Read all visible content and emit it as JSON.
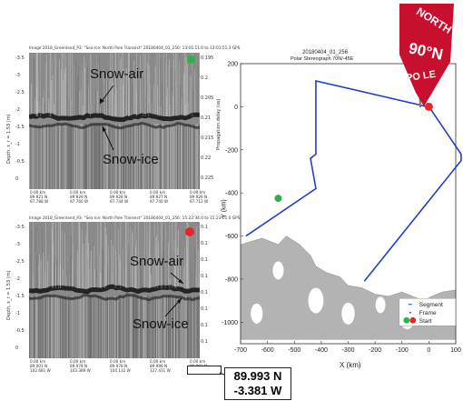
{
  "top_panel": {
    "title": "Image 2018_Greenland_P3: \"Sea Ice: North Pole Transect\" 20180404_01_256: 13:01:11.0 to 13:01:51.3 GPS",
    "y_left_label": "Depth, ε_r = 1.53 (m)",
    "y_right_label": "Propagation delay (us)",
    "left_ticks": [
      "-3.5",
      "-3",
      "-2.5",
      "-2",
      "-1.5",
      "-1",
      "-0.5",
      "0"
    ],
    "right_ticks": [
      "0.195",
      "0.2",
      "0.205",
      "0.21",
      "0.215",
      "0.22",
      "0.225"
    ],
    "bottom_ticks": [
      [
        "0.00 km",
        "89.921 N",
        "97.788 W"
      ],
      [
        "0.00 km",
        "89.929 N",
        "97.760 W"
      ],
      [
        "0.00 km",
        "89.928 N",
        "97.744 W"
      ],
      [
        "0.00 km",
        "89.927 N",
        "97.740 W"
      ],
      [
        "0.00 km",
        "89.926 N",
        "97.712 W"
      ]
    ],
    "annotation_air": "Snow-air",
    "annotation_ice": "Snow-ice",
    "dot_color": "#2bb34a"
  },
  "bottom_panel": {
    "title": "Image 2018_Greenland_P3: \"Sea Ice: North Pole Transect\" 20180404_01_256: 15:22:34.0 to 15:23:01.0 GPS",
    "y_left_label": "Depth, ε_r = 1.53 (m)",
    "left_ticks": [
      "-3.5",
      "-3",
      "-2.5",
      "-2",
      "-1.5",
      "-1",
      "-0.5",
      "0"
    ],
    "right_ticks": [
      "0.1",
      "0.1",
      "0.1",
      "0.1",
      "0.1",
      "0.1",
      "0.1",
      "0.1"
    ],
    "bottom_ticks": [
      [
        "0.00 km",
        "89.001 N",
        "102.681 W"
      ],
      [
        "0.00 km",
        "89.978 N",
        "103.389 W"
      ],
      [
        "0.00 km",
        "89.978 N",
        "104.132 W"
      ],
      [
        "0.00 km",
        "89.996 N",
        "127.431 W"
      ],
      [
        "0.00 km",
        "89.993 N",
        "3.381 W"
      ]
    ],
    "annotation_air": "Snow-air",
    "annotation_ice": "Snow-ice",
    "dot_color": "#e8262a"
  },
  "coord_callout": {
    "lat": "89.993 N",
    "lon": "-3.381 W"
  },
  "map": {
    "title_line1": "20180404_01_256",
    "title_line2": "Polar Stereograph 70N/-45E",
    "xlabel": "X (km)",
    "ylabel": "Y (km)",
    "x_ticks": [
      "-700",
      "-600",
      "-500",
      "-400",
      "-300",
      "-200",
      "-100",
      "0",
      "100"
    ],
    "y_ticks": [
      "-1000",
      "-800",
      "-600",
      "-400",
      "-200",
      "0",
      "200"
    ],
    "legend": [
      "Segment",
      "Frame",
      "Start"
    ],
    "flag_text": [
      "NORTH",
      "90°N",
      "PO LE"
    ],
    "track_color": "#1f3fc8",
    "land_color": "#b3b3b3",
    "flag_color": "#c8102e"
  }
}
